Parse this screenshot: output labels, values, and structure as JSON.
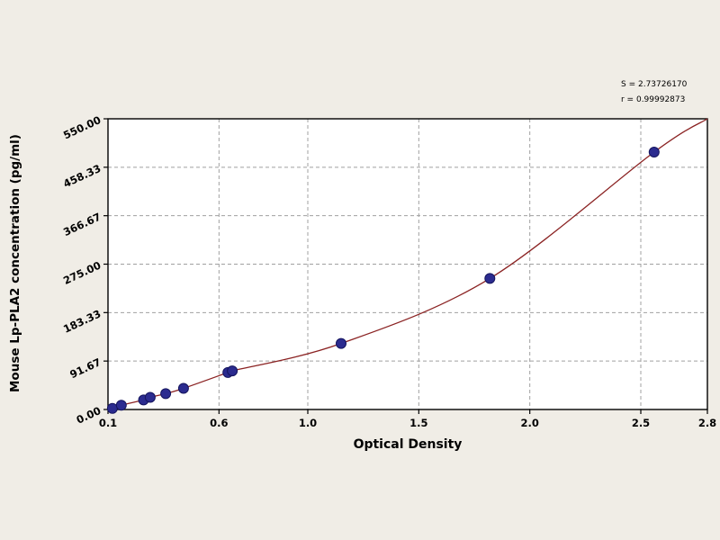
{
  "chart_data": {
    "type": "scatter",
    "title": "",
    "xlabel": "Optical Density",
    "ylabel": "Mouse Lp-PLA2 concentration (pg/ml)",
    "stats": {
      "s_label": "S = 2.73726170",
      "r_label": "r = 0.99992873"
    },
    "xlim": [
      0.1,
      2.8
    ],
    "ylim": [
      0,
      550
    ],
    "grid": "dashed",
    "legend": "none",
    "x_ticks": [
      {
        "v": 0.1,
        "label": "0.1"
      },
      {
        "v": 0.6,
        "label": "0.6"
      },
      {
        "v": 1.0,
        "label": "1.0"
      },
      {
        "v": 1.5,
        "label": "1.5"
      },
      {
        "v": 2.0,
        "label": "2.0"
      },
      {
        "v": 2.5,
        "label": "2.5"
      },
      {
        "v": 2.8,
        "label": "2.8"
      }
    ],
    "y_ticks": [
      {
        "v": 0,
        "label": "0.00"
      },
      {
        "v": 91.67,
        "label": "91.67"
      },
      {
        "v": 183.33,
        "label": "183.33"
      },
      {
        "v": 275,
        "label": "275.00"
      },
      {
        "v": 366.67,
        "label": "366.67"
      },
      {
        "v": 458.33,
        "label": "458.33"
      },
      {
        "v": 550,
        "label": "550.00"
      }
    ],
    "points": [
      [
        0.12,
        2
      ],
      [
        0.16,
        8
      ],
      [
        0.26,
        18
      ],
      [
        0.29,
        23
      ],
      [
        0.36,
        30
      ],
      [
        0.44,
        40
      ],
      [
        0.64,
        70
      ],
      [
        0.66,
        73
      ],
      [
        1.15,
        125
      ],
      [
        1.82,
        248
      ],
      [
        2.56,
        487
      ]
    ],
    "curve_end": [
      2.8,
      550
    ],
    "colors": {
      "background": "#f0ede6",
      "plot_bg": "#ffffff",
      "grid": "#a0a0a0",
      "axis": "#000000",
      "curve": "#8b2323",
      "point": "#2b2b8f",
      "point_edge": "#15155e"
    }
  }
}
